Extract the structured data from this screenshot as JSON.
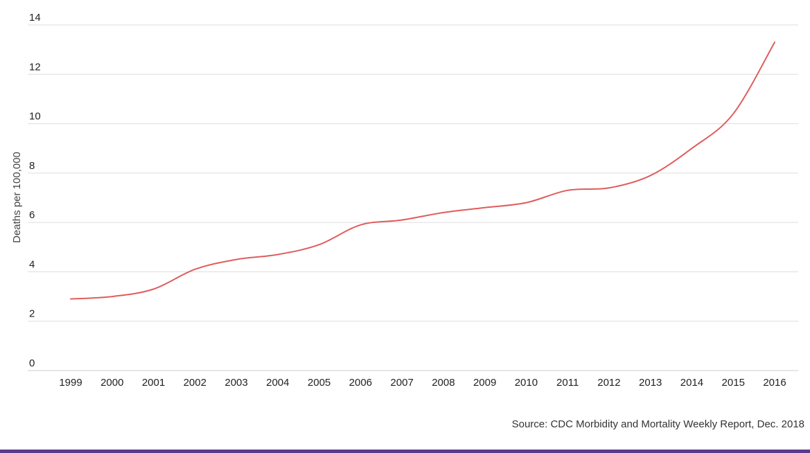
{
  "chart_data": {
    "type": "line",
    "title": "",
    "xlabel": "",
    "ylabel": "Deaths per 100,000",
    "ylim": [
      0,
      14
    ],
    "yticks": [
      0,
      2,
      4,
      6,
      8,
      10,
      12,
      14
    ],
    "grid": true,
    "categories": [
      "1999",
      "2000",
      "2001",
      "2002",
      "2003",
      "2004",
      "2005",
      "2006",
      "2007",
      "2008",
      "2009",
      "2010",
      "2011",
      "2012",
      "2013",
      "2014",
      "2015",
      "2016"
    ],
    "series": [
      {
        "values": [
          2.9,
          3.0,
          3.3,
          4.1,
          4.5,
          4.7,
          5.1,
          5.9,
          6.1,
          6.4,
          6.6,
          6.8,
          7.3,
          7.4,
          7.9,
          9.0,
          10.4,
          13.3
        ],
        "color": "#e05c5c"
      }
    ],
    "colors": {
      "line": "#e05c5c",
      "grid": "#dddddd",
      "bottom_bar": "#5a3a8c"
    },
    "source": "Source: CDC Morbidity and Mortality Weekly Report, Dec. 2018"
  }
}
